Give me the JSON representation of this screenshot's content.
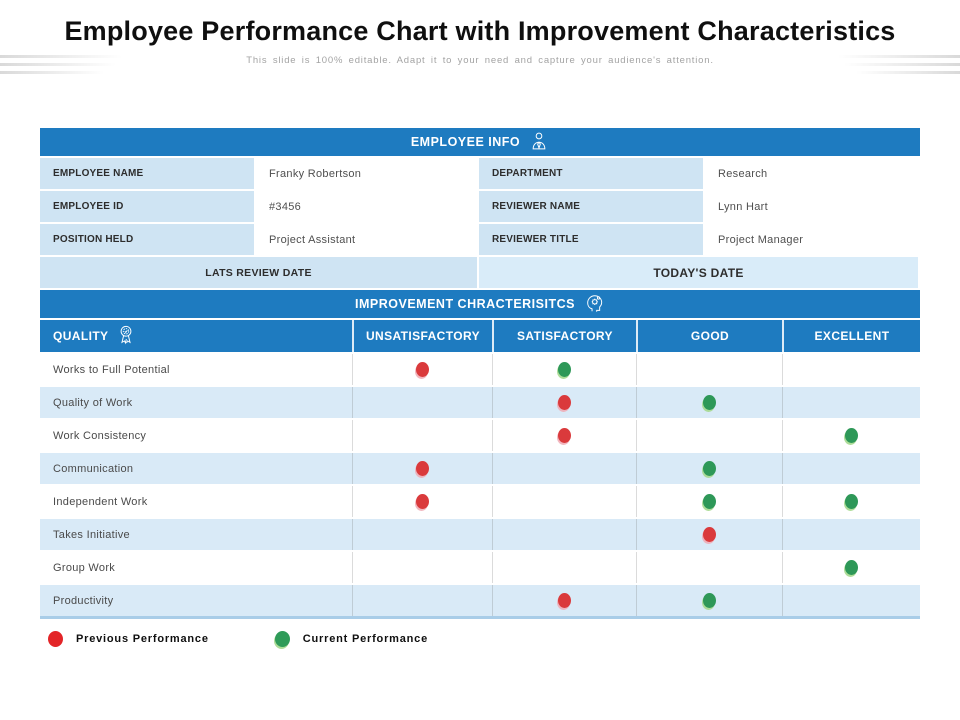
{
  "slide": {
    "title": "Employee Performance Chart with Improvement Characteristics",
    "subtitle": "This slide is 100% editable. Adapt it to your need and capture your audience's attention."
  },
  "employee_info": {
    "header": "EMPLOYEE INFO",
    "rows": [
      {
        "pairs": [
          {
            "label": "EMPLOYEE NAME",
            "value": "Franky Robertson"
          },
          {
            "label": "DEPARTMENT",
            "value": "Research"
          }
        ]
      },
      {
        "pairs": [
          {
            "label": "EMPLOYEE ID",
            "value": "#3456"
          },
          {
            "label": "REVIEWER NAME",
            "value": "Lynn Hart"
          }
        ]
      },
      {
        "pairs": [
          {
            "label": "POSITION HELD",
            "value": "Project Assistant"
          },
          {
            "label": "REVIEWER TITLE",
            "value": "Project Manager"
          }
        ]
      }
    ],
    "last_review_label": "LATS REVIEW DATE",
    "todays_date_label": "TODAY'S DATE"
  },
  "improvement": {
    "header": "IMPROVEMENT CHRACTERISITCS",
    "columns": [
      "QUALITY",
      "UNSATISFACTORY",
      "SATISFACTORY",
      "GOOD",
      "EXCELLENT"
    ],
    "rows": [
      {
        "quality": "Works to Full Potential",
        "previous": [
          "UNSATISFACTORY"
        ],
        "current": [
          "SATISFACTORY"
        ]
      },
      {
        "quality": "Quality of Work",
        "previous": [
          "SATISFACTORY"
        ],
        "current": [
          "GOOD"
        ]
      },
      {
        "quality": "Work Consistency",
        "previous": [
          "SATISFACTORY"
        ],
        "current": [
          "EXCELLENT"
        ]
      },
      {
        "quality": "Communication",
        "previous": [
          "UNSATISFACTORY"
        ],
        "current": [
          "GOOD"
        ]
      },
      {
        "quality": "Independent Work",
        "previous": [
          "UNSATISFACTORY"
        ],
        "current": [
          "GOOD",
          "EXCELLENT"
        ]
      },
      {
        "quality": "Takes Initiative",
        "previous": [
          "GOOD"
        ],
        "current": []
      },
      {
        "quality": "Group Work",
        "previous": [],
        "current": [
          "EXCELLENT"
        ]
      },
      {
        "quality": "Productivity",
        "previous": [
          "SATISFACTORY"
        ],
        "current": [
          "GOOD"
        ]
      }
    ]
  },
  "legend": [
    {
      "label": "Previous Performance",
      "color": "#e32528"
    },
    {
      "label": "Current Performance",
      "color": "#2f9b59"
    }
  ],
  "icons": {
    "employee_info": "person-icon",
    "improvement": "head-gears-icon",
    "quality": "award-medal-icon"
  },
  "colors": {
    "header_blue": "#1e7bc0",
    "label_blue": "#cfe4f3",
    "row_alt_blue": "#d9eaf7",
    "todays_date_blue": "#d9ecf9",
    "bottom_border_blue": "#a9cde8",
    "previous_red": "#da3a3c",
    "current_green": "#2e9858"
  }
}
